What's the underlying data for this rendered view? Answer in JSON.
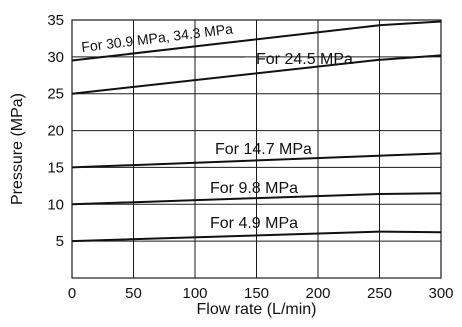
{
  "chart_data": {
    "type": "line",
    "xlabel": "Flow rate (L/min)",
    "ylabel": "Pressure (MPa)",
    "xlim": [
      0,
      300
    ],
    "ylim": [
      0,
      35
    ],
    "xticks": [
      0,
      50,
      100,
      150,
      200,
      250,
      300
    ],
    "yticks": [
      5,
      10,
      15,
      20,
      25,
      30,
      35
    ],
    "grid": true,
    "series": [
      {
        "name": "For 30.9 MPa, 34.3 MPa",
        "x": [
          0,
          250,
          300
        ],
        "y": [
          29.5,
          34.3,
          34.8
        ]
      },
      {
        "name": "For 24.5 MPa",
        "x": [
          0,
          250,
          300
        ],
        "y": [
          25.0,
          29.6,
          30.2
        ]
      },
      {
        "name": "For 14.7 MPa",
        "x": [
          0,
          300
        ],
        "y": [
          15.0,
          16.9
        ]
      },
      {
        "name": "For 9.8 MPa",
        "x": [
          0,
          250,
          300
        ],
        "y": [
          10.0,
          11.4,
          11.5
        ]
      },
      {
        "name": "For 4.9 MPa",
        "x": [
          0,
          250,
          300
        ],
        "y": [
          5.0,
          6.3,
          6.2
        ]
      }
    ]
  }
}
